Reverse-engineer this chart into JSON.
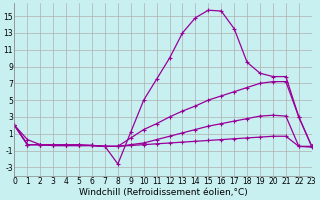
{
  "xlabel": "Windchill (Refroidissement éolien,°C)",
  "bg_color": "#c8f0f0",
  "grid_color": "#b0b0b0",
  "line_color": "#990099",
  "x_ticks": [
    0,
    1,
    2,
    3,
    4,
    5,
    6,
    7,
    8,
    9,
    10,
    11,
    12,
    13,
    14,
    15,
    16,
    17,
    18,
    19,
    20,
    21,
    22,
    23
  ],
  "y_ticks": [
    -3,
    -1,
    1,
    3,
    5,
    7,
    9,
    11,
    13,
    15
  ],
  "xlim": [
    0,
    23
  ],
  "ylim": [
    -4,
    16.5
  ],
  "curves": [
    {
      "x": [
        0,
        1,
        2,
        3,
        4,
        5,
        6,
        7,
        8,
        9,
        10,
        11,
        12,
        13,
        14,
        15,
        16,
        17,
        18,
        19,
        20,
        21,
        22,
        23
      ],
      "y": [
        2.0,
        0.3,
        -0.3,
        -0.3,
        -0.3,
        -0.3,
        -0.4,
        -0.5,
        -2.6,
        1.2,
        5.0,
        7.5,
        10.0,
        13.0,
        14.8,
        15.7,
        15.6,
        13.5,
        9.5,
        8.2,
        7.8,
        7.8,
        3.0,
        -0.5
      ]
    },
    {
      "x": [
        0,
        1,
        2,
        3,
        4,
        5,
        6,
        7,
        8,
        9,
        10,
        11,
        12,
        13,
        14,
        15,
        16,
        17,
        18,
        19,
        20,
        21,
        22,
        23
      ],
      "y": [
        2.0,
        -0.3,
        -0.3,
        -0.4,
        -0.4,
        -0.4,
        -0.4,
        -0.5,
        -0.5,
        0.5,
        1.5,
        2.2,
        3.0,
        3.7,
        4.3,
        5.0,
        5.5,
        6.0,
        6.5,
        7.0,
        7.2,
        7.2,
        3.0,
        -0.5
      ]
    },
    {
      "x": [
        0,
        1,
        2,
        3,
        4,
        5,
        6,
        7,
        8,
        9,
        10,
        11,
        12,
        13,
        14,
        15,
        16,
        17,
        18,
        19,
        20,
        21,
        22,
        23
      ],
      "y": [
        2.0,
        -0.3,
        -0.3,
        -0.4,
        -0.4,
        -0.4,
        -0.4,
        -0.5,
        -0.5,
        -0.3,
        -0.1,
        0.3,
        0.7,
        1.1,
        1.5,
        1.9,
        2.2,
        2.5,
        2.8,
        3.1,
        3.2,
        3.1,
        -0.5,
        -0.5
      ]
    },
    {
      "x": [
        0,
        1,
        2,
        3,
        4,
        5,
        6,
        7,
        8,
        9,
        10,
        11,
        12,
        13,
        14,
        15,
        16,
        17,
        18,
        19,
        20,
        21,
        22,
        23
      ],
      "y": [
        2.0,
        -0.3,
        -0.3,
        -0.4,
        -0.4,
        -0.4,
        -0.4,
        -0.5,
        -0.5,
        -0.4,
        -0.3,
        -0.2,
        -0.1,
        0.0,
        0.1,
        0.2,
        0.3,
        0.4,
        0.5,
        0.6,
        0.7,
        0.7,
        -0.5,
        -0.6
      ]
    }
  ],
  "marker": "+",
  "markersize": 3,
  "linewidth": 0.9,
  "tick_fontsize": 5.5,
  "xlabel_fontsize": 6.5
}
